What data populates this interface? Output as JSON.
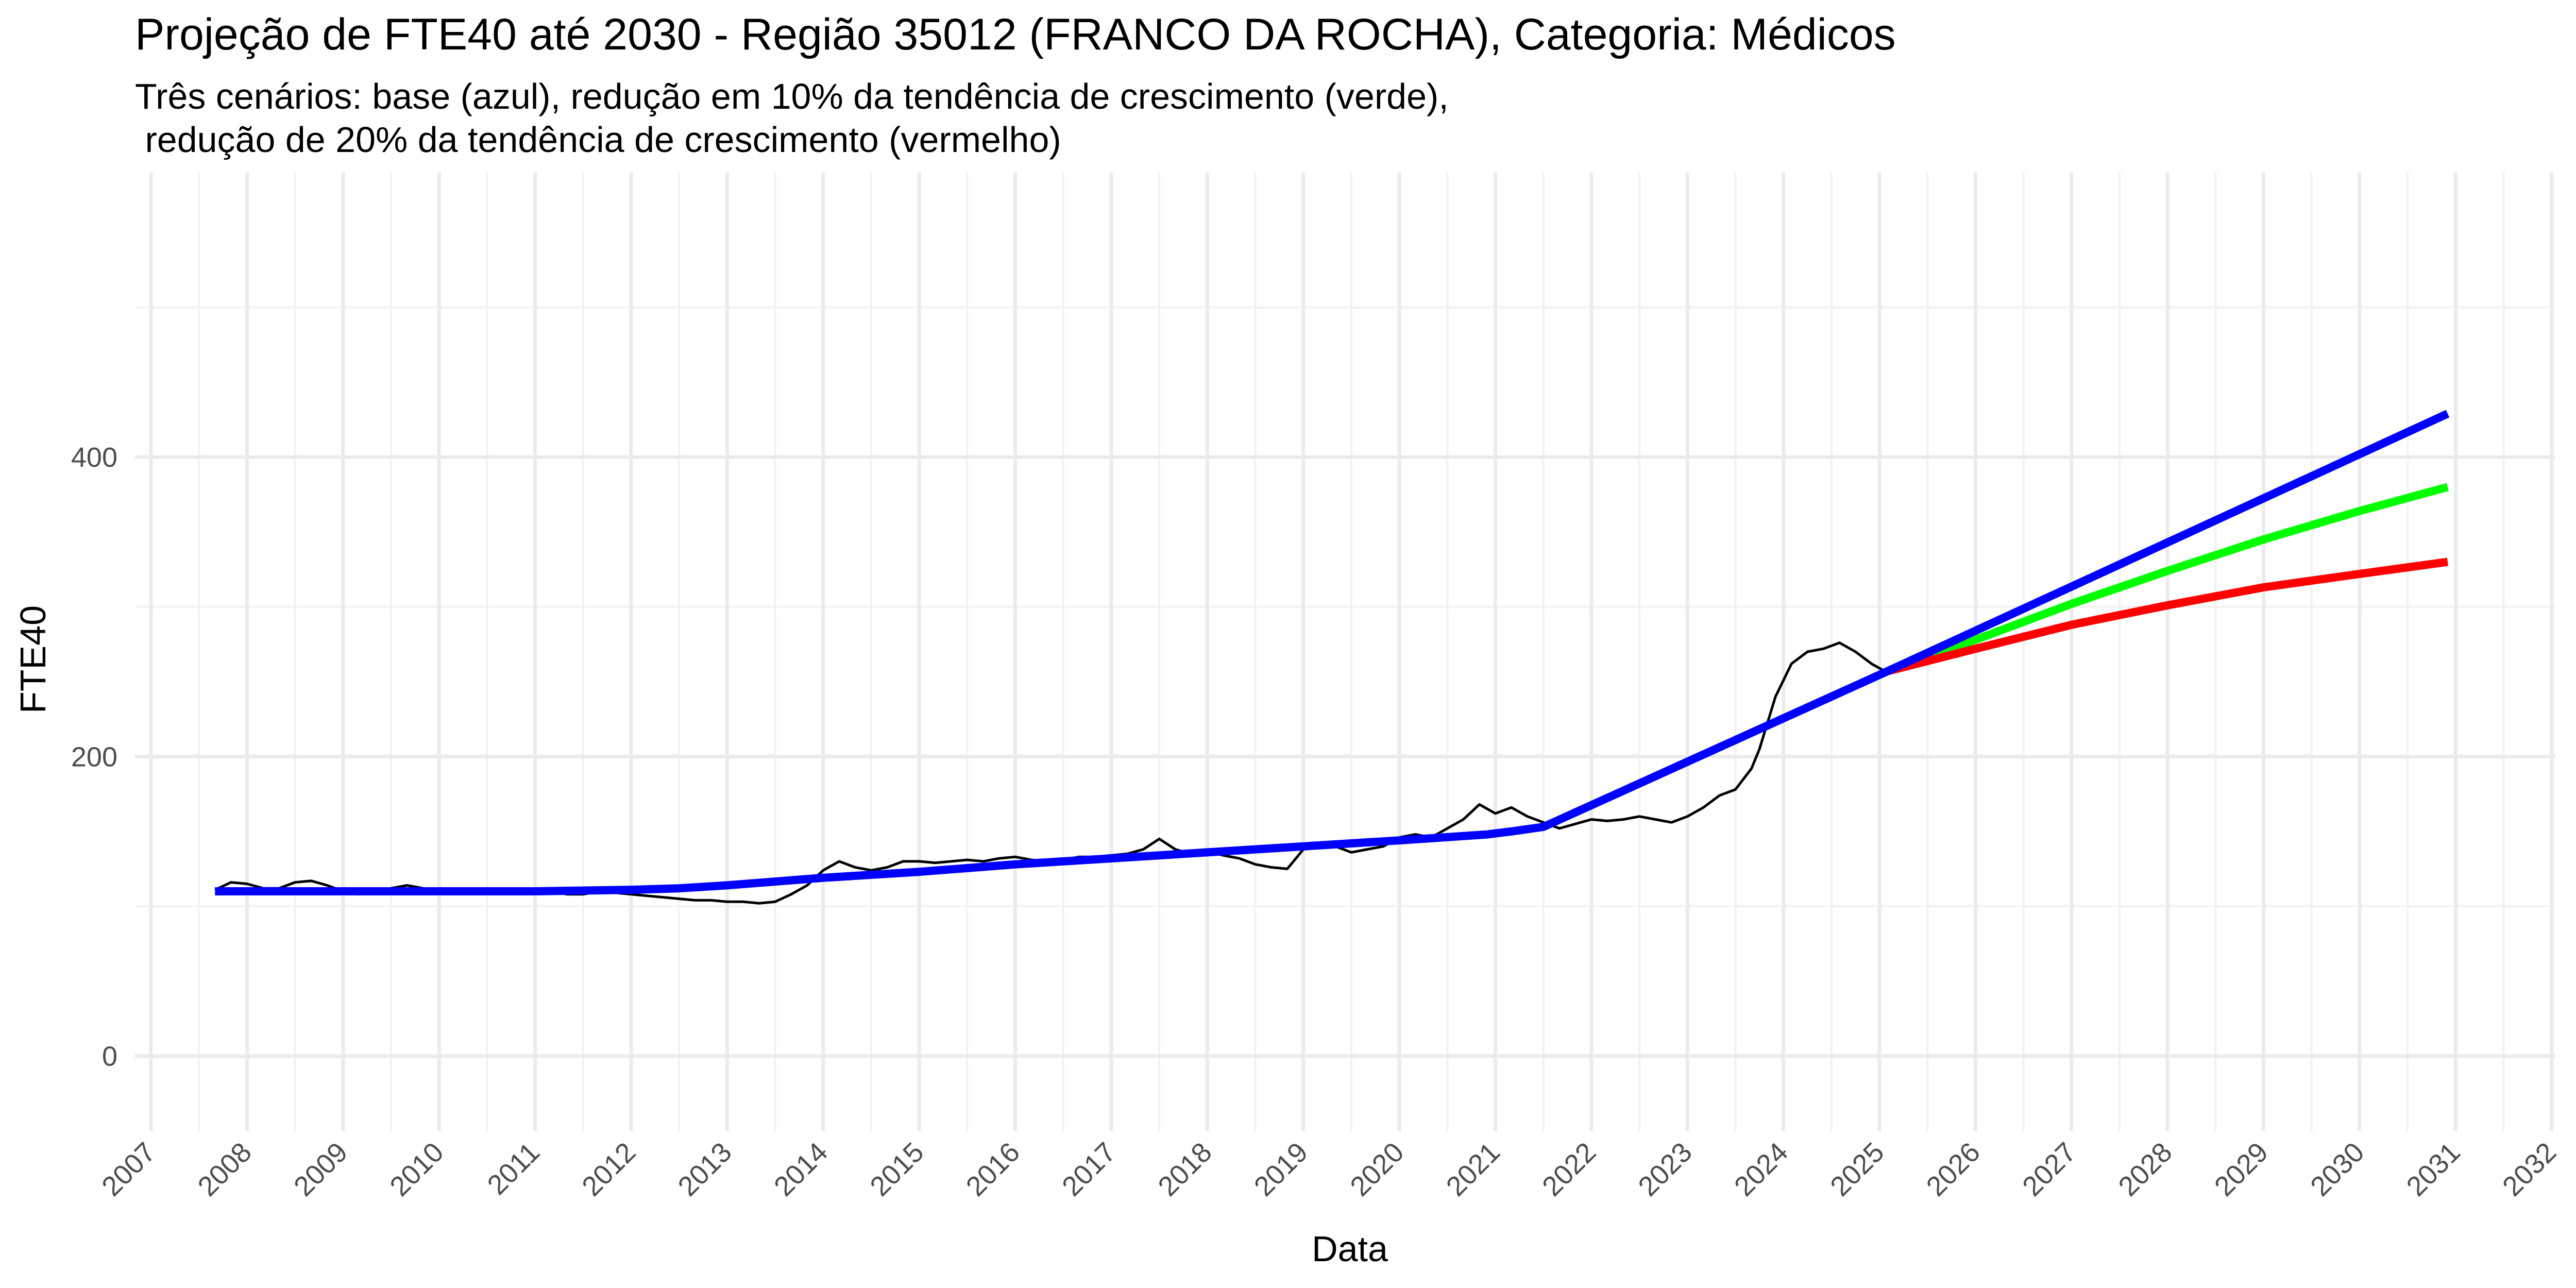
{
  "title": "Projeção de FTE40 até 2030 - Região 35012 (FRANCO DA ROCHA), Categoria: Médicos",
  "subtitle": "Três cenários: base (azul), redução em 10% da tendência de crescimento (verde),\n redução de 20% da tendência de crescimento (vermelho)",
  "chart_data": {
    "type": "line",
    "title": "Projeção de FTE40 até 2030 - Região 35012 (FRANCO DA ROCHA), Categoria: Médicos",
    "subtitle": "Três cenários: base (azul), redução em 10% da tendência de crescimento (verde),\n redução de 20% da tendência de crescimento (vermelho)",
    "xlabel": "Data",
    "ylabel": "FTE40",
    "x_type": "date",
    "xlim": [
      "2006-11-01",
      "2032-01-15"
    ],
    "ylim": [
      -50,
      590
    ],
    "x_ticks": [
      "2007",
      "2008",
      "2009",
      "2010",
      "2011",
      "2012",
      "2013",
      "2014",
      "2015",
      "2016",
      "2017",
      "2018",
      "2019",
      "2020",
      "2021",
      "2022",
      "2023",
      "2024",
      "2025",
      "2026",
      "2027",
      "2028",
      "2029",
      "2030",
      "2031",
      "2032"
    ],
    "y_ticks": [
      0,
      200,
      400
    ],
    "grid": true,
    "legend": "none",
    "series": [
      {
        "color": "#000000",
        "x": [
          "2007-09",
          "2007-11",
          "2008-01",
          "2008-03",
          "2008-05",
          "2008-07",
          "2008-09",
          "2008-11",
          "2009-01",
          "2009-03",
          "2009-05",
          "2009-07",
          "2009-09",
          "2009-11",
          "2010-01",
          "2010-03",
          "2010-05",
          "2010-07",
          "2010-09",
          "2010-11",
          "2011-01",
          "2011-03",
          "2011-05",
          "2011-07",
          "2011-09",
          "2011-11",
          "2012-01",
          "2012-03",
          "2012-05",
          "2012-07",
          "2012-09",
          "2012-11",
          "2013-01",
          "2013-03",
          "2013-05",
          "2013-07",
          "2013-09",
          "2013-11",
          "2014-01",
          "2014-03",
          "2014-05",
          "2014-07",
          "2014-09",
          "2014-11",
          "2015-01",
          "2015-03",
          "2015-05",
          "2015-07",
          "2015-09",
          "2015-11",
          "2016-01",
          "2016-03",
          "2016-05",
          "2016-07",
          "2016-09",
          "2016-11",
          "2017-01",
          "2017-03",
          "2017-05",
          "2017-07",
          "2017-09",
          "2017-11",
          "2018-01",
          "2018-03",
          "2018-05",
          "2018-07",
          "2018-09",
          "2018-11",
          "2019-01",
          "2019-03",
          "2019-05",
          "2019-07",
          "2019-09",
          "2019-11",
          "2020-01",
          "2020-03",
          "2020-05",
          "2020-07",
          "2020-09",
          "2020-11",
          "2021-01",
          "2021-03",
          "2021-05",
          "2021-07",
          "2021-09",
          "2021-11",
          "2022-01",
          "2022-03",
          "2022-05",
          "2022-07",
          "2022-09",
          "2022-11",
          "2023-01",
          "2023-03",
          "2023-05",
          "2023-07",
          "2023-09",
          "2023-10",
          "2023-12",
          "2024-02",
          "2024-04",
          "2024-06",
          "2024-08",
          "2024-10",
          "2024-12",
          "2025-02"
        ],
        "y": [
          111,
          116,
          115,
          112,
          112,
          116,
          117,
          114,
          110,
          108,
          110,
          112,
          114,
          112,
          111,
          110,
          109,
          109,
          110,
          111,
          109,
          110,
          108,
          108,
          110,
          109,
          108,
          107,
          106,
          105,
          104,
          104,
          103,
          103,
          102,
          103,
          108,
          114,
          124,
          130,
          126,
          124,
          126,
          130,
          130,
          129,
          130,
          131,
          130,
          132,
          133,
          131,
          130,
          131,
          133,
          133,
          134,
          135,
          138,
          145,
          138,
          135,
          137,
          134,
          132,
          128,
          126,
          125,
          138,
          142,
          140,
          136,
          138,
          140,
          146,
          148,
          146,
          152,
          158,
          168,
          162,
          166,
          160,
          156,
          152,
          155,
          158,
          157,
          158,
          160,
          158,
          156,
          160,
          166,
          174,
          178,
          192,
          205,
          240,
          262,
          270,
          272,
          276,
          270,
          262,
          256
        ]
      },
      {
        "color": "#0000ff",
        "x": [
          "2007-09",
          "2009-01",
          "2010-01",
          "2011-01",
          "2012-01",
          "2012-07",
          "2013-01",
          "2014-01",
          "2015-01",
          "2016-01",
          "2017-01",
          "2018-01",
          "2019-01",
          "2020-01",
          "2020-12",
          "2021-03",
          "2021-07",
          "2025-02",
          "2030-12"
        ],
        "y": [
          110,
          110,
          110,
          110,
          111,
          112,
          114,
          119,
          123,
          128,
          132,
          136,
          140,
          144,
          148,
          150,
          153,
          257,
          429
        ]
      },
      {
        "color": "#00ff00",
        "x": [
          "2025-02",
          "2026-01",
          "2027-01",
          "2028-01",
          "2029-01",
          "2030-01",
          "2030-12"
        ],
        "y": [
          257,
          278,
          302,
          324,
          345,
          364,
          380
        ]
      },
      {
        "color": "#ff0000",
        "x": [
          "2025-02",
          "2026-01",
          "2027-01",
          "2028-01",
          "2029-01",
          "2030-01",
          "2030-12"
        ],
        "y": [
          257,
          272,
          288,
          301,
          313,
          322,
          330
        ]
      }
    ]
  }
}
